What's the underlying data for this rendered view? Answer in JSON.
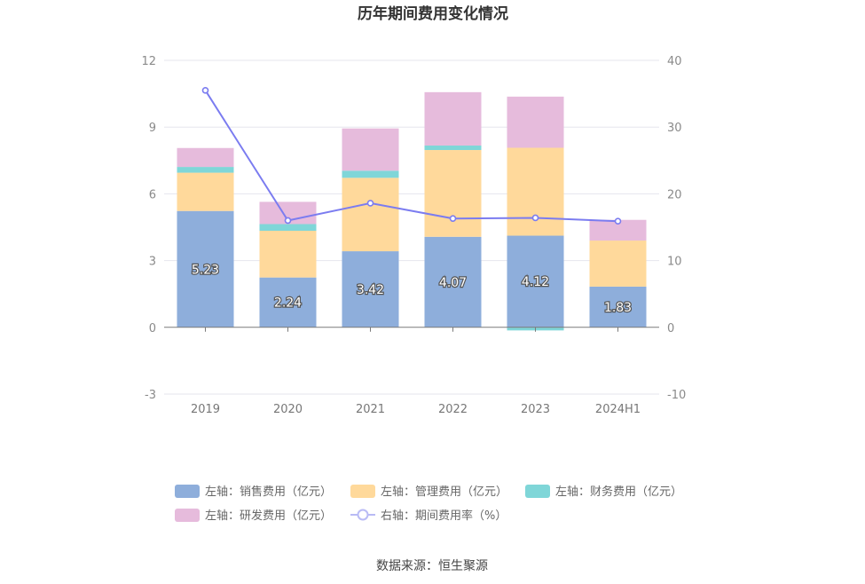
{
  "chart_data": {
    "type": "bar",
    "title": "历年期间费用变化情况",
    "categories": [
      "2019",
      "2020",
      "2021",
      "2022",
      "2023",
      "2024H1"
    ],
    "left_axis": {
      "ticks": [
        "12",
        "9",
        "6",
        "3",
        "0",
        "-3"
      ],
      "min": -3,
      "max": 12
    },
    "right_axis": {
      "ticks": [
        "40",
        "30",
        "20",
        "10",
        "0",
        "-10"
      ],
      "min": -10,
      "max": 40
    },
    "series": [
      {
        "name": "左轴：销售费用（亿元）",
        "key": "sales",
        "color": "#8eaedb",
        "values": [
          5.23,
          2.24,
          3.42,
          4.07,
          4.12,
          1.83
        ],
        "labels": [
          "5.23",
          "2.24",
          "3.42",
          "4.07",
          "4.12",
          "1.83"
        ]
      },
      {
        "name": "左轴：管理费用（亿元）",
        "key": "admin",
        "color": "#ffd99b",
        "values": [
          1.72,
          2.1,
          3.3,
          3.9,
          3.95,
          2.07
        ]
      },
      {
        "name": "左轴：财务费用（亿元）",
        "key": "finance",
        "color": "#7fd6d8",
        "values": [
          0.26,
          0.3,
          0.32,
          0.2,
          -0.14,
          0.0
        ]
      },
      {
        "name": "左轴：研发费用（亿元）",
        "key": "rnd",
        "color": "#e6bbdc",
        "values": [
          0.85,
          1.0,
          1.9,
          2.4,
          2.3,
          0.93
        ]
      },
      {
        "name": "右轴：期间费用率（%）",
        "key": "rate",
        "type": "line",
        "color": "#7b7cf0",
        "values": [
          35.5,
          16.0,
          18.6,
          16.3,
          16.4,
          15.9
        ]
      }
    ],
    "source": "数据来源：恒生聚源"
  }
}
